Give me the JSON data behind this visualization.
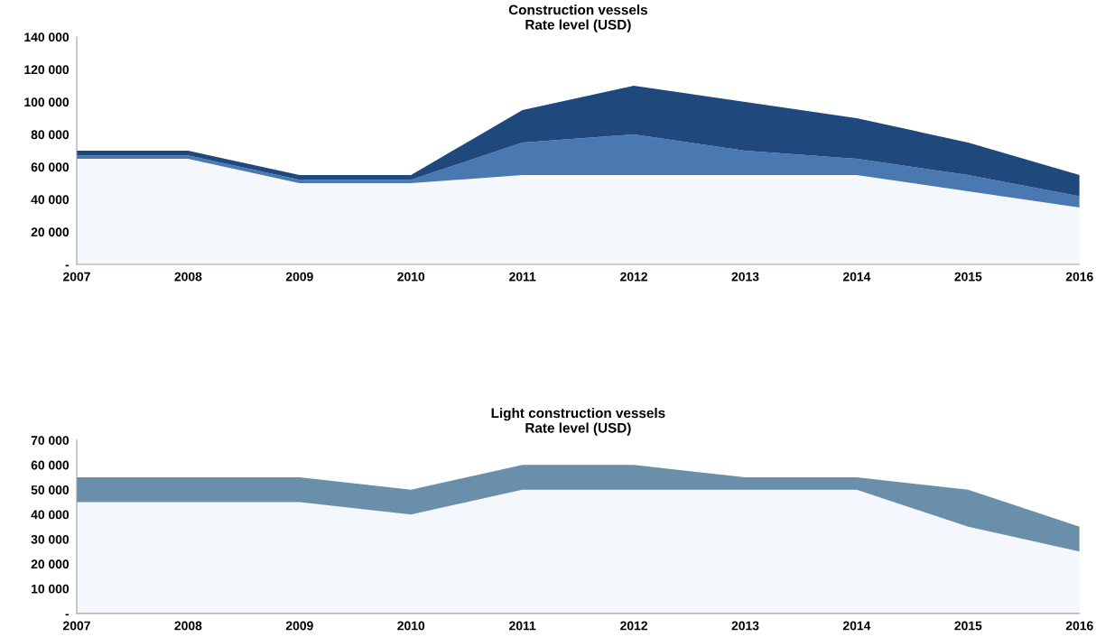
{
  "chart_data": [
    {
      "type": "area",
      "stacked": true,
      "title": "Construction vessels\nRate level (USD)",
      "categories": [
        "2007",
        "2008",
        "2009",
        "2010",
        "2011",
        "2012",
        "2013",
        "2014",
        "2015",
        "2016"
      ],
      "series": [
        {
          "color": "#f4f7fb",
          "values": [
            65000,
            65000,
            50000,
            50000,
            55000,
            55000,
            55000,
            55000,
            45000,
            35000
          ]
        },
        {
          "color": "#4a78b0",
          "values": [
            2000,
            2000,
            2000,
            2000,
            20000,
            25000,
            15000,
            10000,
            10000,
            7000
          ]
        },
        {
          "color": "#1f497d",
          "values": [
            3000,
            3000,
            3000,
            3000,
            20000,
            30000,
            30000,
            25000,
            20000,
            13000
          ]
        }
      ],
      "ylim": [
        0,
        140000
      ],
      "yticks": [
        {
          "value": 0,
          "label": "-"
        },
        {
          "value": 20000,
          "label": "20 000"
        },
        {
          "value": 40000,
          "label": "40 000"
        },
        {
          "value": 60000,
          "label": "60 000"
        },
        {
          "value": 80000,
          "label": "80 000"
        },
        {
          "value": 100000,
          "label": "100 000"
        },
        {
          "value": 120000,
          "label": "120 000"
        },
        {
          "value": 140000,
          "label": "140 000"
        }
      ]
    },
    {
      "type": "area",
      "stacked": true,
      "title": "Light construction vessels\nRate level (USD)",
      "categories": [
        "2007",
        "2008",
        "2009",
        "2010",
        "2011",
        "2012",
        "2013",
        "2014",
        "2015",
        "2016"
      ],
      "series": [
        {
          "color": "#f4f7fb",
          "values": [
            45000,
            45000,
            45000,
            40000,
            50000,
            50000,
            50000,
            50000,
            35000,
            25000
          ]
        },
        {
          "color": "#6a8fab",
          "values": [
            10000,
            10000,
            10000,
            10000,
            10000,
            10000,
            5000,
            5000,
            15000,
            10000
          ]
        }
      ],
      "ylim": [
        0,
        70000
      ],
      "yticks": [
        {
          "value": 0,
          "label": "-"
        },
        {
          "value": 10000,
          "label": "10 000"
        },
        {
          "value": 20000,
          "label": "20 000"
        },
        {
          "value": 30000,
          "label": "30 000"
        },
        {
          "value": 40000,
          "label": "40 000"
        },
        {
          "value": 50000,
          "label": "50 000"
        },
        {
          "value": 60000,
          "label": "60 000"
        },
        {
          "value": 70000,
          "label": "70 000"
        }
      ]
    }
  ]
}
